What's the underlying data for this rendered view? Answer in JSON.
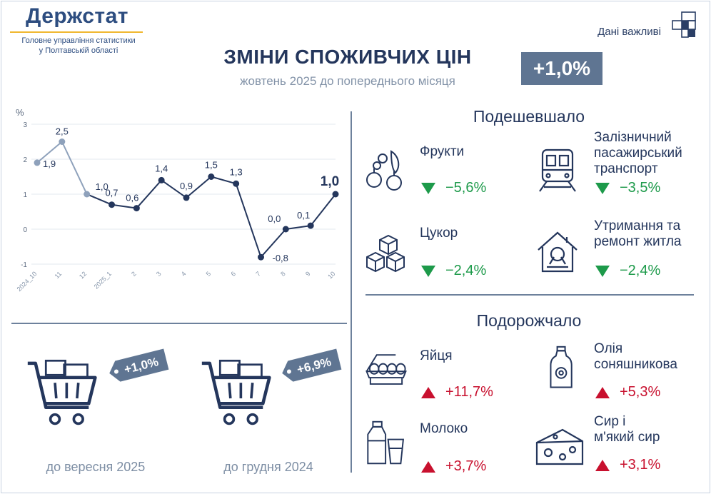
{
  "header": {
    "logo": "Держстат",
    "org_line1": "Головне управління статистики",
    "org_line2": "у Полтавській області",
    "important_label": "Дані важливі",
    "title": "ЗМІНИ СПОЖИВЧИХ ЦІН",
    "subtitle": "жовтень 2025 до попереднього місяця",
    "headline_value": "+1,0%"
  },
  "chart_data": {
    "type": "line",
    "ylabel": "%",
    "ylim": [
      -1,
      3
    ],
    "yticks": [
      "-1",
      "0",
      "1",
      "2",
      "3"
    ],
    "categories": [
      "2024_10",
      "11",
      "12",
      "2025_1",
      "2",
      "3",
      "4",
      "5",
      "6",
      "7",
      "8",
      "9",
      "10"
    ],
    "values": [
      1.9,
      2.5,
      1.0,
      0.7,
      0.6,
      1.4,
      0.9,
      1.5,
      1.3,
      -0.8,
      0.0,
      0.1,
      1.0
    ],
    "labels": [
      "1,9",
      "2,5",
      "1,0",
      "0,7",
      "0,6",
      "1,4",
      "0,9",
      "1,5",
      "1,3",
      "-0,8",
      "0,0",
      "0,1",
      "1,0"
    ],
    "grid": true,
    "colors": {
      "past": "#8ea1bb",
      "current": "#24365c"
    }
  },
  "comparisons": [
    {
      "value": "+1,0%",
      "label": "до вересня 2025"
    },
    {
      "value": "+6,9%",
      "label": "до грудня 2024"
    }
  ],
  "cheaper": {
    "heading": "Подешевшало",
    "items": [
      {
        "icon": "fruit-icon",
        "name_lines": [
          "Фрукти"
        ],
        "value": "−5,6%"
      },
      {
        "icon": "train-icon",
        "name_lines": [
          "Залізничний",
          "пасажирський",
          "транспорт"
        ],
        "value": "−3,5%"
      },
      {
        "icon": "sugar-cubes-icon",
        "name_lines": [
          "Цукор"
        ],
        "value": "−2,4%"
      },
      {
        "icon": "house-repair-icon",
        "name_lines": [
          "Утримання та",
          "ремонт житла"
        ],
        "value": "−2,4%"
      }
    ]
  },
  "pricier": {
    "heading": "Подорожчало",
    "items": [
      {
        "icon": "eggs-icon",
        "name_lines": [
          "Яйця"
        ],
        "value": "+11,7%"
      },
      {
        "icon": "oil-bottle-icon",
        "name_lines": [
          "Олія",
          "соняшникова"
        ],
        "value": "+5,3%"
      },
      {
        "icon": "milk-icon",
        "name_lines": [
          "Молоко"
        ],
        "value": "+3,7%"
      },
      {
        "icon": "cheese-icon",
        "name_lines": [
          "Сир і",
          "м'який сир"
        ],
        "value": "+3,1%"
      }
    ]
  }
}
